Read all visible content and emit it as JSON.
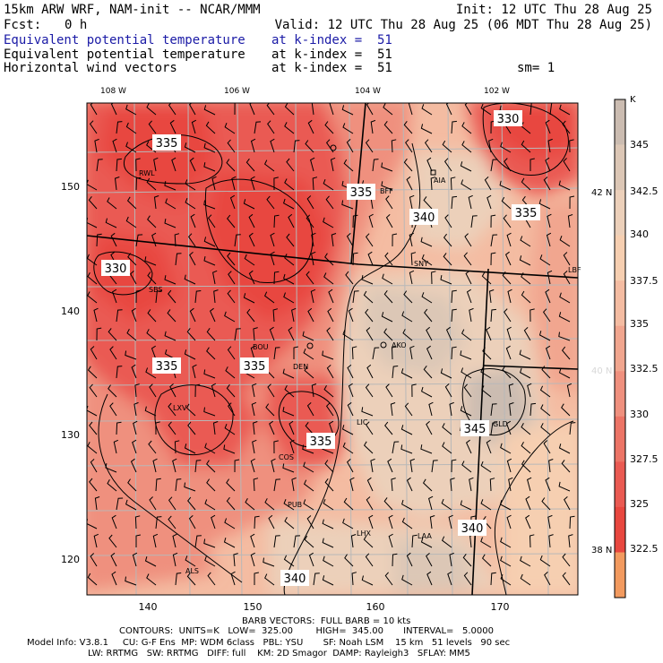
{
  "header": {
    "model_line": "15km ARW WRF, NAM-init -- NCAR/MMM",
    "init_line": "Init: 12 UTC Thu 28 Aug 25",
    "fcst_label": "Fcst:",
    "fcst_value": "0 h",
    "valid_line": "Valid: 12 UTC Thu 28 Aug 25 (06 MDT Thu 28 Aug 25)",
    "fields": [
      {
        "name": "Equivalent potential temperature",
        "level": "at k-index =  51",
        "color": "#1a1aa6"
      },
      {
        "name": "Equivalent potential temperature",
        "level": "at k-index =  51",
        "color": "#000000"
      },
      {
        "name": "Horizontal wind vectors",
        "level": "at k-index =  51",
        "color": "#000000"
      }
    ],
    "smoothing": "sm= 1"
  },
  "map": {
    "top_lon_labels": [
      "108 W",
      "106 W",
      "104 W",
      "102 W"
    ],
    "bottom_ticks": [
      "140",
      "150",
      "160",
      "170"
    ],
    "left_ticks": [
      "150",
      "140",
      "130",
      "120"
    ],
    "right_lat_labels": [
      "42 N",
      "40 N",
      "38 N"
    ],
    "cities": [
      "RWL",
      "BFF",
      "AIA",
      "SNY",
      "LBF",
      "SBS",
      "AKO",
      "BOU",
      "DEN",
      "LXV",
      "GLD",
      "LIC",
      "COS",
      "PUB",
      "LHX",
      "LAA",
      "ALS"
    ],
    "contour_labels": [
      "335",
      "330",
      "335",
      "340",
      "335",
      "330",
      "335",
      "335",
      "345",
      "335",
      "340",
      "340"
    ]
  },
  "colorbar": {
    "unit": "K",
    "labels": [
      "345",
      "342.5",
      "340",
      "337.5",
      "335",
      "332.5",
      "330",
      "327.5",
      "325",
      "322.5"
    ],
    "colors": [
      "#cbbcb1",
      "#dcc7b6",
      "#ecd0ba",
      "#f6cfb1",
      "#f4bca2",
      "#f1a68f",
      "#ef907e",
      "#ec7466",
      "#ea5a52",
      "#e8473f",
      "#f29a5f"
    ]
  },
  "footer": {
    "barbs": "BARB VECTORS:  FULL BARB = 10 kts",
    "contours": "CONTOURS:  UNITS=K   LOW=  325.00        HIGH=  345.00       INTERVAL=   5.0000",
    "model_info_1": "Model Info: V3.8.1     CU: G-F Ens  MP: WDM 6class   PBL: YSU       SF: Noah LSM    15 km   51 levels   90 sec",
    "model_info_2": "LW: RRTMG   SW: RRTMG   DIFF: full    KM: 2D Smagor  DAMP: Rayleigh3   SFLAY: MM5"
  }
}
